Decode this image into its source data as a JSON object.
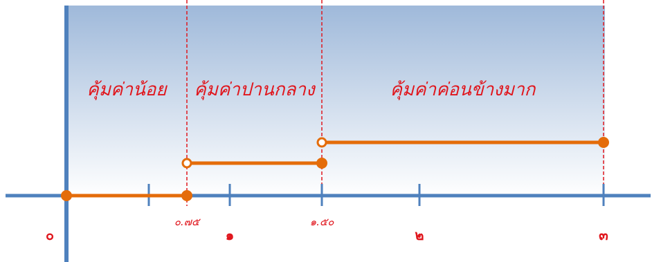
{
  "colors": {
    "axis": "#4f81bd",
    "segment": "#e46c0a",
    "guide": "#e0161d",
    "label": "#e0161d",
    "background_top": "#9fb9da",
    "background_bottom": "#ffffff"
  },
  "zones": [
    {
      "label": "คุ้มค่าน้อย",
      "from": 0,
      "to": 0.75
    },
    {
      "label": "คุ้มค่าปานกลาง",
      "from": 0.75,
      "to": 1.5
    },
    {
      "label": "คุ้มค่าค่อนข้างมาก",
      "from": 1.5,
      "to": 3
    }
  ],
  "tick_labels": [
    {
      "value": 0,
      "text": "๐",
      "style": "big"
    },
    {
      "value": 0.75,
      "text": "๐.๗๕",
      "style": "small"
    },
    {
      "value": 1,
      "text": "๑",
      "style": "big"
    },
    {
      "value": 1.5,
      "text": "๑.๕๐",
      "style": "small"
    },
    {
      "value": 2,
      "text": "๒",
      "style": "big"
    },
    {
      "value": 3,
      "text": "๓",
      "style": "big"
    }
  ],
  "tick_marks": [
    0.5,
    1,
    1.5,
    2,
    3
  ],
  "guides": [
    0.75,
    1.5,
    3
  ],
  "intervals": [
    {
      "from": 0,
      "to": 0.75,
      "level": 0,
      "from_open": false,
      "to_open": false
    },
    {
      "from": 0.75,
      "to": 1.5,
      "level": 1,
      "from_open": true,
      "to_open": false
    },
    {
      "from": 1.5,
      "to": 3,
      "level": 2,
      "from_open": true,
      "to_open": false
    }
  ]
}
